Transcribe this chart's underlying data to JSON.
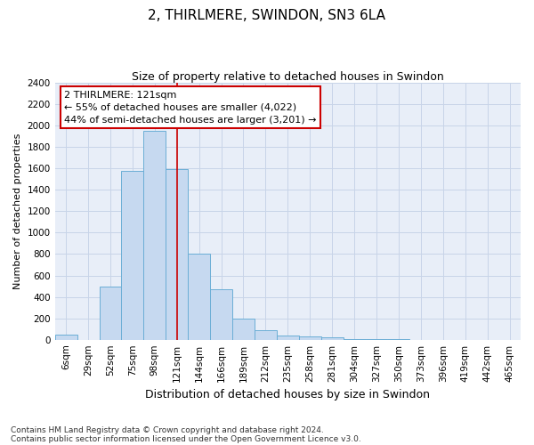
{
  "title": "2, THIRLMERE, SWINDON, SN3 6LA",
  "subtitle": "Size of property relative to detached houses in Swindon",
  "xlabel": "Distribution of detached houses by size in Swindon",
  "ylabel": "Number of detached properties",
  "footnote1": "Contains HM Land Registry data © Crown copyright and database right 2024.",
  "footnote2": "Contains public sector information licensed under the Open Government Licence v3.0.",
  "annotation_line1": "2 THIRLMERE: 121sqm",
  "annotation_line2": "← 55% of detached houses are smaller (4,022)",
  "annotation_line3": "44% of semi-detached houses are larger (3,201) →",
  "bar_color": "#c6d9f0",
  "bar_edge_color": "#6baed6",
  "vline_color": "#cc0000",
  "grid_color": "#c8d4e8",
  "bg_color": "#e8eef8",
  "fig_bg_color": "#ffffff",
  "categories": [
    "6sqm",
    "29sqm",
    "52sqm",
    "75sqm",
    "98sqm",
    "121sqm",
    "144sqm",
    "166sqm",
    "189sqm",
    "212sqm",
    "235sqm",
    "258sqm",
    "281sqm",
    "304sqm",
    "327sqm",
    "350sqm",
    "373sqm",
    "396sqm",
    "419sqm",
    "442sqm",
    "465sqm"
  ],
  "values": [
    50,
    0,
    500,
    1580,
    1950,
    1590,
    800,
    475,
    200,
    90,
    40,
    30,
    20,
    5,
    3,
    2,
    1,
    1,
    1,
    1,
    1
  ],
  "vline_index": 5,
  "ylim": [
    0,
    2400
  ],
  "yticks": [
    0,
    200,
    400,
    600,
    800,
    1000,
    1200,
    1400,
    1600,
    1800,
    2000,
    2200,
    2400
  ],
  "title_fontsize": 11,
  "subtitle_fontsize": 9,
  "ylabel_fontsize": 8,
  "xlabel_fontsize": 9,
  "tick_fontsize": 7.5,
  "annot_fontsize": 8,
  "footnote_fontsize": 6.5
}
